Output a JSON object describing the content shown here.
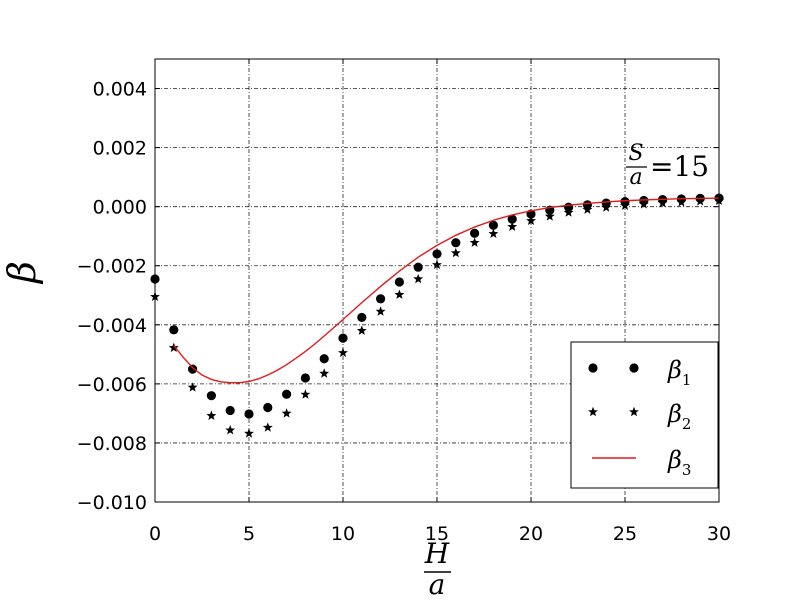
{
  "chart_data": {
    "type": "scatter",
    "title": "",
    "xlabel": {
      "numerator": "H",
      "denominator": "a"
    },
    "ylabel": "β",
    "xlim": [
      0,
      30
    ],
    "ylim": [
      -0.01,
      0.005
    ],
    "xticks": [
      0,
      5,
      10,
      15,
      20,
      25,
      30
    ],
    "xtick_labels": [
      "0",
      "5",
      "10",
      "15",
      "20",
      "25",
      "30"
    ],
    "yticks": [
      -0.01,
      -0.008,
      -0.006,
      -0.004,
      -0.002,
      0.0,
      0.002,
      0.004
    ],
    "ytick_labels": [
      "−0.010",
      "−0.008",
      "−0.006",
      "−0.004",
      "−0.002",
      "0.000",
      "0.002",
      "0.004"
    ],
    "grid": true,
    "legend_position": "lower-right",
    "annotation": {
      "numerator": "S",
      "denominator": "a",
      "value": "=15"
    },
    "series": [
      {
        "name": "β1",
        "base": "β",
        "sub": "1",
        "marker": "circle",
        "color": "#000000",
        "x": [
          0,
          1,
          2,
          3,
          4,
          5,
          6,
          7,
          8,
          9,
          10,
          11,
          12,
          13,
          14,
          15,
          16,
          17,
          18,
          19,
          20,
          21,
          22,
          23,
          24,
          25,
          26,
          27,
          28,
          29,
          30
        ],
        "y": [
          -0.00245,
          -0.00417,
          -0.0055,
          -0.0064,
          -0.0069,
          -0.00702,
          -0.0068,
          -0.00635,
          -0.0058,
          -0.00515,
          -0.00445,
          -0.00375,
          -0.00312,
          -0.00255,
          -0.00205,
          -0.0016,
          -0.00122,
          -0.0009,
          -0.00063,
          -0.00042,
          -0.00025,
          -0.00012,
          -2e-05,
          6e-05,
          0.00012,
          0.00017,
          0.00021,
          0.00024,
          0.00026,
          0.00028,
          0.00029
        ]
      },
      {
        "name": "β2",
        "base": "β",
        "sub": "2",
        "marker": "star",
        "color": "#000000",
        "x": [
          0,
          1,
          2,
          3,
          4,
          5,
          6,
          7,
          8,
          9,
          10,
          11,
          12,
          13,
          14,
          15,
          16,
          17,
          18,
          19,
          20,
          21,
          22,
          23,
          24,
          25,
          26,
          27,
          28,
          29,
          30
        ],
        "y": [
          -0.00305,
          -0.00478,
          -0.00612,
          -0.00708,
          -0.00757,
          -0.00768,
          -0.00748,
          -0.007,
          -0.00636,
          -0.00565,
          -0.00495,
          -0.0042,
          -0.00355,
          -0.00298,
          -0.00245,
          -0.00197,
          -0.00157,
          -0.00122,
          -0.00092,
          -0.00068,
          -0.00048,
          -0.00033,
          -0.0002,
          -0.0001,
          -3e-05,
          3e-05,
          8e-05,
          0.00012,
          0.00015,
          0.00018,
          0.0002
        ]
      },
      {
        "name": "β3",
        "base": "β",
        "sub": "3",
        "marker": "line",
        "color": "#e41a1c",
        "x": [
          1,
          1.5,
          2,
          2.5,
          3,
          3.5,
          4,
          4.5,
          5,
          5.5,
          6,
          6.5,
          7,
          7.5,
          8,
          8.5,
          9,
          9.5,
          10,
          11,
          12,
          13,
          14,
          15,
          16,
          17,
          18,
          19,
          20,
          21,
          22,
          23,
          24,
          25,
          26,
          27,
          28,
          29,
          30
        ],
        "y": [
          -0.0047,
          -0.0051,
          -0.00545,
          -0.0057,
          -0.00585,
          -0.00593,
          -0.00596,
          -0.00596,
          -0.00592,
          -0.00583,
          -0.0057,
          -0.00554,
          -0.00535,
          -0.00513,
          -0.0049,
          -0.00465,
          -0.00438,
          -0.0041,
          -0.00382,
          -0.00325,
          -0.0027,
          -0.00218,
          -0.00171,
          -0.00131,
          -0.00097,
          -0.00069,
          -0.00046,
          -0.00028,
          -0.00014,
          -3e-05,
          5e-05,
          0.00011,
          0.00016,
          0.0002,
          0.00023,
          0.00025,
          0.00027,
          0.00028,
          0.00029
        ]
      }
    ]
  }
}
